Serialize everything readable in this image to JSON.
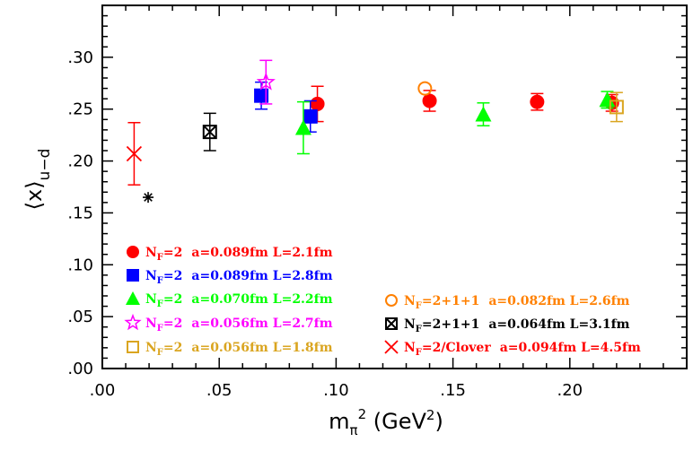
{
  "chart_data": {
    "type": "scatter",
    "xlabel": "m_π² (GeV²)",
    "ylabel": "⟨x⟩u−d",
    "xlim": [
      0.0,
      0.25
    ],
    "ylim": [
      0.0,
      0.35
    ],
    "x_ticks": [
      {
        "value": 0.0,
        "label": ".00"
      },
      {
        "value": 0.05,
        "label": ".05"
      },
      {
        "value": 0.1,
        "label": ".10"
      },
      {
        "value": 0.15,
        "label": ".15"
      },
      {
        "value": 0.2,
        "label": ".20"
      }
    ],
    "y_ticks": [
      {
        "value": 0.0,
        "label": ".00"
      },
      {
        "value": 0.05,
        "label": ".05"
      },
      {
        "value": 0.1,
        "label": ".10"
      },
      {
        "value": 0.15,
        "label": ".15"
      },
      {
        "value": 0.2,
        "label": ".20"
      },
      {
        "value": 0.25,
        "label": ".25"
      },
      {
        "value": 0.3,
        "label": ".30"
      }
    ],
    "grid": false,
    "legend_position": "bottom-left and bottom-right",
    "series": [
      {
        "name": "NF=2 a=0.089fm L=2.1fm",
        "nf": "=2",
        "text": "a=0.089fm L=2.1fm",
        "marker": "circle-filled",
        "color": "#ff0000",
        "points": [
          {
            "x": 0.092,
            "y": 0.255,
            "err": 0.017
          },
          {
            "x": 0.14,
            "y": 0.258,
            "err": 0.01
          },
          {
            "x": 0.186,
            "y": 0.257,
            "err": 0.008
          },
          {
            "x": 0.218,
            "y": 0.256,
            "err": 0.008
          }
        ]
      },
      {
        "name": "NF=2 a=0.089fm L=2.8fm",
        "nf": "=2",
        "text": "a=0.089fm L=2.8fm",
        "marker": "square-filled",
        "color": "#0000ff",
        "points": [
          {
            "x": 0.068,
            "y": 0.263,
            "err": 0.013
          },
          {
            "x": 0.089,
            "y": 0.243,
            "err": 0.015
          }
        ]
      },
      {
        "name": "NF=2 a=0.070fm L=2.2fm",
        "nf": "=2",
        "text": "a=0.070fm L=2.2fm",
        "marker": "triangle-filled",
        "color": "#00ff00",
        "points": [
          {
            "x": 0.086,
            "y": 0.232,
            "err": 0.025
          },
          {
            "x": 0.163,
            "y": 0.245,
            "err": 0.011
          },
          {
            "x": 0.216,
            "y": 0.259,
            "err": 0.008
          }
        ]
      },
      {
        "name": "NF=2 a=0.056fm L=2.7fm",
        "nf": "=2",
        "text": "a=0.056fm L=2.7fm",
        "marker": "star-open",
        "color": "#ff00ff",
        "points": [
          {
            "x": 0.07,
            "y": 0.276,
            "err": 0.021
          }
        ]
      },
      {
        "name": "NF=2 a=0.056fm L=1.8fm",
        "nf": "=2",
        "text": "a=0.056fm L=1.8fm",
        "marker": "square-open",
        "color": "#daa520",
        "points": [
          {
            "x": 0.22,
            "y": 0.252,
            "err": 0.014
          }
        ]
      },
      {
        "name": "NF=2+1+1 a=0.082fm L=2.6fm",
        "nf": "=2+1+1",
        "text": "a=0.082fm L=2.6fm",
        "marker": "circle-open",
        "color": "#ff8000",
        "points": [
          {
            "x": 0.138,
            "y": 0.27,
            "err": 0.0
          }
        ]
      },
      {
        "name": "NF=2+1+1 a=0.064fm L=3.1fm",
        "nf": "=2+1+1",
        "text": "a=0.064fm L=3.1fm",
        "marker": "square-cross",
        "color": "#000000",
        "points": [
          {
            "x": 0.046,
            "y": 0.228,
            "err": 0.018
          }
        ]
      },
      {
        "name": "NF=2/Clover a=0.094fm L=4.5fm",
        "nf": "=2/Clover",
        "text": "a=0.094fm L=4.5fm",
        "marker": "x-cross",
        "color": "#ff0000",
        "points": [
          {
            "x": 0.0136,
            "y": 0.207,
            "err": 0.03
          }
        ]
      },
      {
        "name": "",
        "nf": "",
        "text": "",
        "marker": "asterisk",
        "color": "#000000",
        "points": [
          {
            "x": 0.0196,
            "y": 0.165,
            "err": 0.0
          }
        ]
      }
    ]
  }
}
